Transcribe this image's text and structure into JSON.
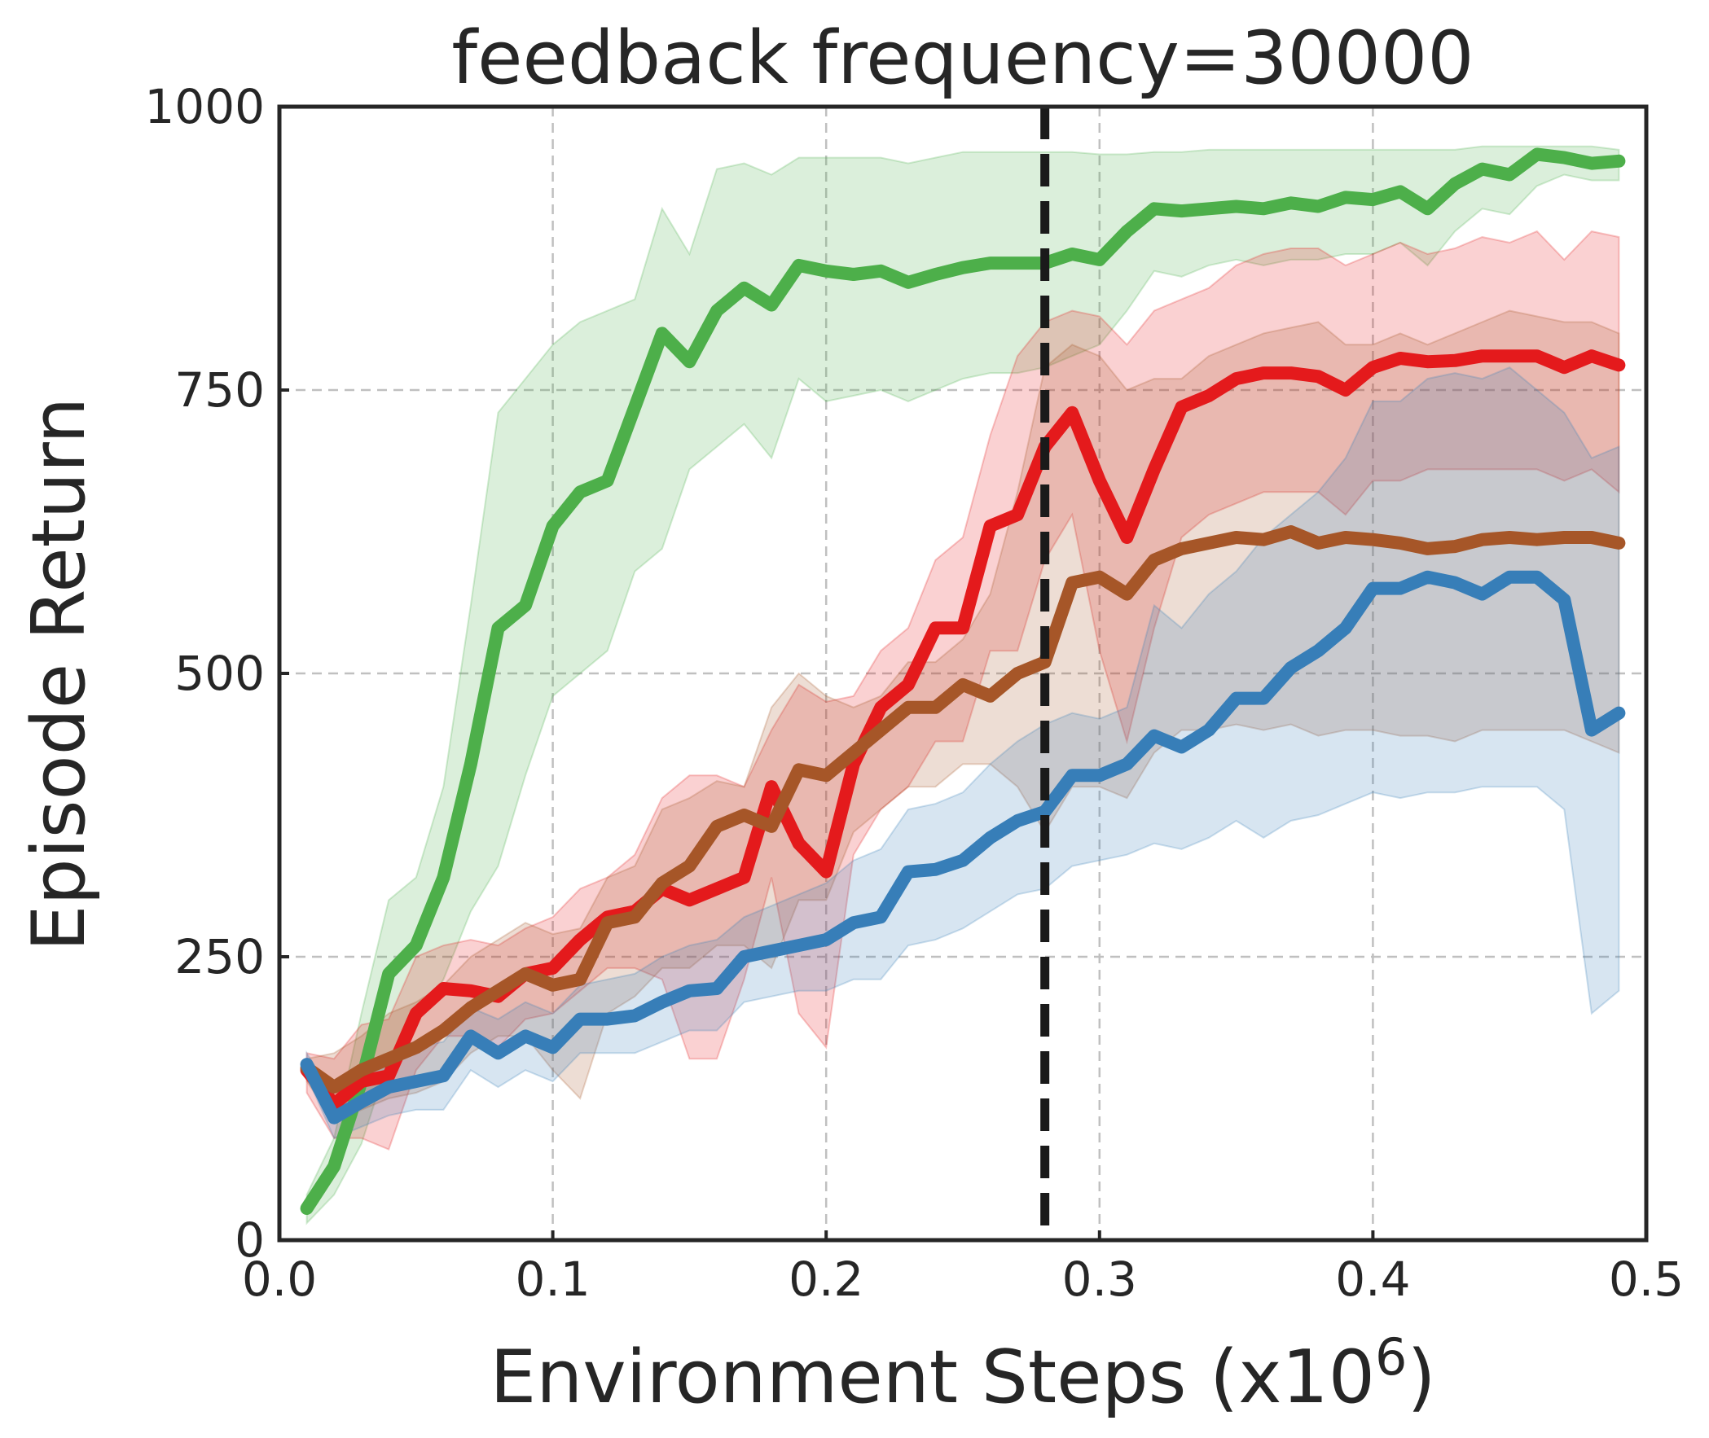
{
  "chart_data": {
    "type": "line",
    "title": "feedback frequency=30000",
    "xlabel": "Environment Steps (x10",
    "xlabel_exponent": "6",
    "xlabel_suffix": ")",
    "ylabel": "Episode Return",
    "xlim": [
      0,
      0.5
    ],
    "ylim": [
      0,
      1000
    ],
    "xticks": [
      0.0,
      0.1,
      0.2,
      0.3,
      0.4,
      0.5
    ],
    "xtick_labels": [
      "0.0",
      "0.1",
      "0.2",
      "0.3",
      "0.4",
      "0.5"
    ],
    "yticks": [
      0,
      250,
      500,
      750,
      1000
    ],
    "ytick_labels": [
      "0",
      "250",
      "500",
      "750",
      "1000"
    ],
    "grid": true,
    "vline": {
      "x": 0.28,
      "style": "dashed",
      "color": "#1a1a1a"
    },
    "x": [
      0.01,
      0.02,
      0.03,
      0.04,
      0.05,
      0.06,
      0.07,
      0.08,
      0.09,
      0.1,
      0.11,
      0.12,
      0.13,
      0.14,
      0.15,
      0.16,
      0.17,
      0.18,
      0.19,
      0.2,
      0.21,
      0.22,
      0.23,
      0.24,
      0.25,
      0.26,
      0.27,
      0.28,
      0.29,
      0.3,
      0.31,
      0.32,
      0.33,
      0.34,
      0.35,
      0.36,
      0.37,
      0.38,
      0.39,
      0.4,
      0.41,
      0.42,
      0.43,
      0.44,
      0.45,
      0.46,
      0.47,
      0.48,
      0.49
    ],
    "series": [
      {
        "name": "green",
        "color": "#4daf4a",
        "values": [
          28,
          65,
          140,
          235,
          260,
          320,
          420,
          540,
          560,
          630,
          660,
          670,
          735,
          800,
          775,
          820,
          840,
          825,
          860,
          855,
          852,
          855,
          845,
          852,
          858,
          862,
          862,
          862,
          870,
          865,
          890,
          910,
          908,
          910,
          912,
          910,
          915,
          912,
          920,
          918,
          925,
          910,
          932,
          945,
          940,
          958,
          955,
          950,
          952
        ],
        "upper": [
          40,
          90,
          200,
          300,
          320,
          400,
          560,
          730,
          760,
          790,
          810,
          820,
          830,
          910,
          870,
          945,
          950,
          940,
          955,
          955,
          955,
          955,
          950,
          955,
          960,
          960,
          960,
          960,
          960,
          958,
          958,
          960,
          960,
          962,
          962,
          962,
          962,
          962,
          962,
          962,
          962,
          962,
          962,
          965,
          965,
          965,
          965,
          965,
          962
        ],
        "lower": [
          15,
          40,
          85,
          160,
          190,
          230,
          290,
          330,
          410,
          480,
          500,
          520,
          590,
          610,
          680,
          700,
          720,
          690,
          760,
          740,
          745,
          750,
          740,
          750,
          760,
          765,
          765,
          770,
          780,
          790,
          820,
          855,
          850,
          860,
          865,
          860,
          865,
          865,
          870,
          870,
          880,
          860,
          890,
          910,
          905,
          930,
          940,
          935,
          935
        ]
      },
      {
        "name": "red",
        "color": "#e41a1c",
        "values": [
          150,
          120,
          140,
          145,
          200,
          222,
          220,
          215,
          235,
          240,
          265,
          285,
          290,
          310,
          300,
          310,
          320,
          400,
          350,
          325,
          420,
          470,
          490,
          540,
          540,
          630,
          640,
          700,
          730,
          670,
          620,
          680,
          735,
          745,
          760,
          765,
          765,
          762,
          750,
          770,
          778,
          775,
          776,
          780,
          780,
          780,
          770,
          780,
          772
        ],
        "upper": [
          165,
          160,
          190,
          195,
          250,
          260,
          265,
          260,
          275,
          285,
          310,
          320,
          340,
          390,
          410,
          410,
          400,
          450,
          490,
          475,
          480,
          520,
          540,
          600,
          620,
          710,
          780,
          810,
          820,
          815,
          790,
          820,
          830,
          840,
          860,
          870,
          875,
          875,
          860,
          870,
          880,
          870,
          875,
          885,
          880,
          890,
          865,
          890,
          885
        ],
        "lower": [
          130,
          90,
          90,
          80,
          150,
          180,
          180,
          170,
          195,
          200,
          220,
          240,
          240,
          230,
          160,
          160,
          230,
          320,
          200,
          170,
          340,
          380,
          400,
          440,
          440,
          520,
          520,
          600,
          640,
          520,
          440,
          540,
          620,
          640,
          650,
          660,
          660,
          660,
          640,
          670,
          670,
          680,
          680,
          680,
          680,
          680,
          670,
          680,
          660
        ]
      },
      {
        "name": "brown",
        "color": "#a65628",
        "values": [
          152,
          135,
          150,
          160,
          170,
          185,
          205,
          220,
          235,
          225,
          230,
          280,
          285,
          315,
          330,
          365,
          375,
          365,
          415,
          410,
          430,
          450,
          470,
          470,
          490,
          480,
          500,
          510,
          580,
          585,
          570,
          600,
          610,
          615,
          620,
          618,
          625,
          615,
          620,
          618,
          615,
          610,
          612,
          618,
          620,
          618,
          620,
          620,
          615
        ],
        "upper": [
          160,
          165,
          180,
          200,
          210,
          225,
          250,
          265,
          280,
          270,
          275,
          320,
          330,
          380,
          390,
          405,
          400,
          470,
          500,
          480,
          470,
          480,
          510,
          510,
          530,
          570,
          660,
          770,
          790,
          780,
          750,
          760,
          760,
          780,
          790,
          800,
          805,
          810,
          790,
          790,
          800,
          790,
          800,
          810,
          820,
          815,
          810,
          810,
          800
        ],
        "lower": [
          140,
          105,
          115,
          125,
          130,
          140,
          165,
          180,
          180,
          150,
          125,
          200,
          215,
          240,
          240,
          260,
          260,
          240,
          300,
          300,
          360,
          380,
          400,
          400,
          420,
          420,
          400,
          360,
          400,
          400,
          390,
          430,
          450,
          450,
          455,
          450,
          455,
          445,
          450,
          450,
          445,
          445,
          440,
          450,
          450,
          450,
          450,
          440,
          430
        ]
      },
      {
        "name": "blue",
        "color": "#377eb8",
        "values": [
          155,
          108,
          122,
          135,
          140,
          145,
          180,
          165,
          180,
          170,
          195,
          195,
          198,
          210,
          220,
          222,
          250,
          255,
          260,
          265,
          280,
          285,
          325,
          327,
          335,
          355,
          370,
          378,
          410,
          410,
          420,
          445,
          435,
          450,
          478,
          478,
          505,
          520,
          540,
          575,
          575,
          585,
          580,
          570,
          585,
          585,
          565,
          450,
          465
        ],
        "upper": [
          165,
          125,
          140,
          160,
          170,
          175,
          205,
          195,
          210,
          200,
          225,
          230,
          235,
          250,
          260,
          265,
          285,
          295,
          305,
          315,
          335,
          345,
          380,
          385,
          395,
          420,
          440,
          455,
          465,
          460,
          470,
          560,
          540,
          570,
          590,
          620,
          640,
          660,
          690,
          740,
          740,
          760,
          765,
          760,
          770,
          750,
          730,
          690,
          700
        ],
        "lower": [
          145,
          90,
          100,
          110,
          115,
          115,
          150,
          135,
          150,
          140,
          165,
          165,
          165,
          175,
          185,
          185,
          210,
          215,
          220,
          220,
          230,
          230,
          260,
          265,
          275,
          290,
          305,
          310,
          330,
          335,
          340,
          350,
          345,
          355,
          370,
          355,
          370,
          375,
          385,
          395,
          390,
          395,
          395,
          400,
          400,
          400,
          380,
          200,
          220
        ]
      }
    ]
  }
}
